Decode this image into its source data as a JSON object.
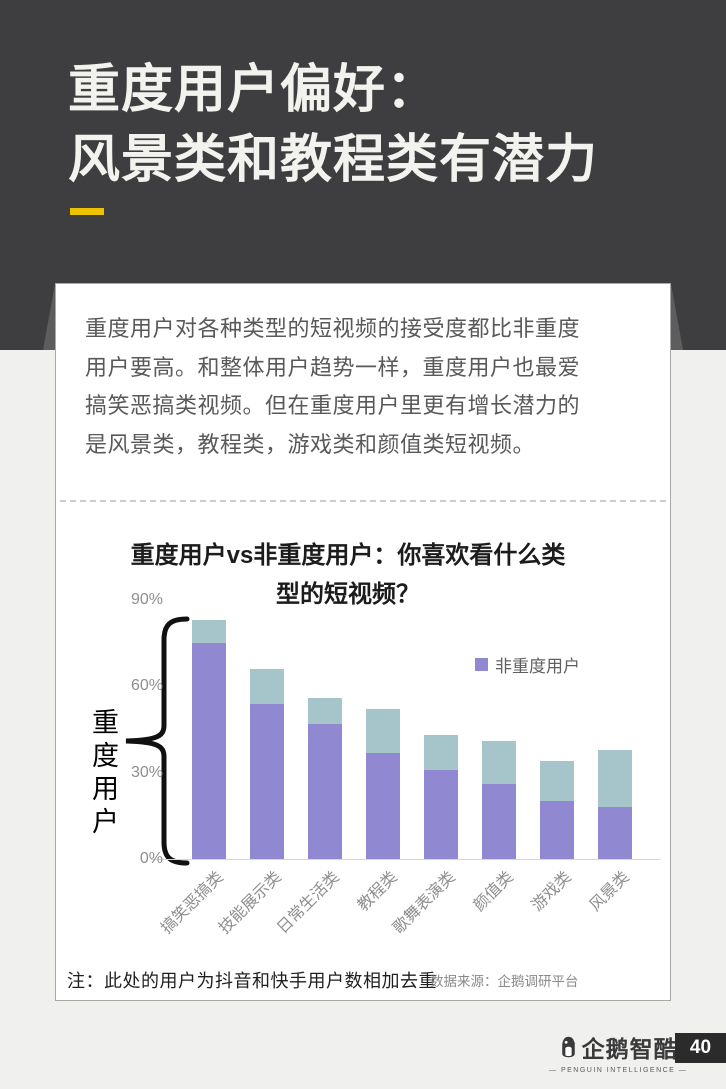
{
  "header": {
    "title_line1": "重度用户偏好：",
    "title_line2": "风景类和教程类有潜力"
  },
  "card": {
    "paragraph_lines": [
      "重度用户对各种类型的短视频的接受度都比非重度",
      "用户要高。和整体用户趋势一样，重度用户也最爱",
      "搞笑恶搞类视频。但在重度用户里更有增长潜力的",
      "是风景类，教程类，游戏类和颜值类短视频。"
    ],
    "note": "注：此处的用户为抖音和快手用户数相加去重",
    "source": "数据来源：企鹅调研平台"
  },
  "chart_data": {
    "type": "bar",
    "subtype": "overlapped-bars",
    "title": "重度用户vs非重度用户：你喜欢看什么类型的短视频？",
    "title_lines": [
      "重度用户vs非重度用户：你喜欢看什么类",
      "型的短视频？"
    ],
    "categories": [
      "搞笑恶搞类",
      "技能展示类",
      "日常生活类",
      "教程类",
      "歌舞表演类",
      "颜值类",
      "游戏类",
      "风景类"
    ],
    "series": [
      {
        "name": "重度用户",
        "color": "#a5c5ca",
        "values": [
          83,
          66,
          56,
          52,
          43,
          41,
          34,
          38
        ]
      },
      {
        "name": "非重度用户",
        "color": "#9089d2",
        "values": [
          75,
          54,
          47,
          37,
          31,
          26,
          20,
          18
        ]
      }
    ],
    "unit": "%",
    "ylim": [
      0,
      90
    ],
    "y_ticks": [
      {
        "value": 0,
        "label": "0%"
      },
      {
        "value": 30,
        "label": "30%"
      },
      {
        "value": 60,
        "label": "60%"
      },
      {
        "value": 90,
        "label": "90%"
      }
    ],
    "grid": false,
    "xlabel_rotation": -45,
    "legend": {
      "position": "upper-right",
      "visible_entries": [
        "非重度用户"
      ]
    },
    "left_axis_label": "重度用户"
  },
  "footer": {
    "logo_text": "企鹅智酷",
    "logo_subtext": "— PENGUIN INTELLIGENCE —",
    "page_number": "40"
  },
  "colors": {
    "page_bg_dark": "#3e3e40",
    "page_bg_light": "#f0f1ee",
    "title_text": "#f2f2ee",
    "accent_yellow": "#eec200",
    "bar_heavy": "#a5c5ca",
    "bar_nonheavy": "#9089d2",
    "body_text": "#595959",
    "page_num_box": "#2b2b2b"
  }
}
